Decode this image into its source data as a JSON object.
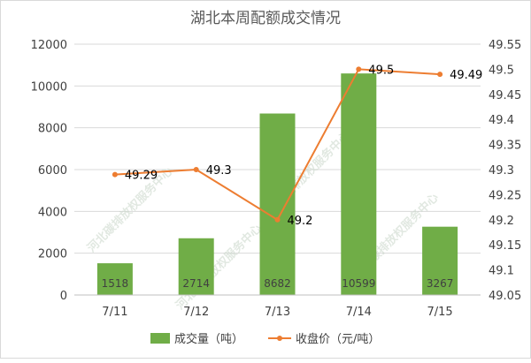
{
  "chart_data": {
    "type": "bar",
    "title": "湖北本周配额成交情况",
    "categories": [
      "7/11",
      "7/12",
      "7/13",
      "7/14",
      "7/15"
    ],
    "series": [
      {
        "name": "成交量（吨）",
        "type": "bar",
        "axis": "left",
        "color": "#70ad47",
        "values": [
          1518,
          2714,
          8682,
          10599,
          3267
        ],
        "labels": [
          "1518",
          "2714",
          "8682",
          "10599",
          "3267"
        ]
      },
      {
        "name": "收盘价（元/吨）",
        "type": "line",
        "axis": "right",
        "color": "#ed7d31",
        "values": [
          49.29,
          49.3,
          49.2,
          49.5,
          49.49
        ],
        "labels": [
          "49.29",
          "49.3",
          "49.2",
          "49.5",
          "49.49"
        ]
      }
    ],
    "y_left": {
      "min": 0,
      "max": 12000,
      "ticks": [
        0,
        2000,
        4000,
        6000,
        8000,
        10000,
        12000
      ],
      "tick_labels": [
        "0",
        "2000",
        "4000",
        "6000",
        "8000",
        "10000",
        "12000"
      ]
    },
    "y_right": {
      "min": 49.05,
      "max": 49.55,
      "ticks": [
        49.05,
        49.1,
        49.15,
        49.2,
        49.25,
        49.3,
        49.35,
        49.4,
        49.45,
        49.5,
        49.55
      ],
      "tick_labels": [
        "49.05",
        "49.1",
        "49.15",
        "49.2",
        "49.25",
        "49.3",
        "49.35",
        "49.4",
        "49.45",
        "49.5",
        "49.55"
      ]
    },
    "grid": true,
    "legend_position": "bottom",
    "watermark": "河北碳排放权服务中心"
  }
}
